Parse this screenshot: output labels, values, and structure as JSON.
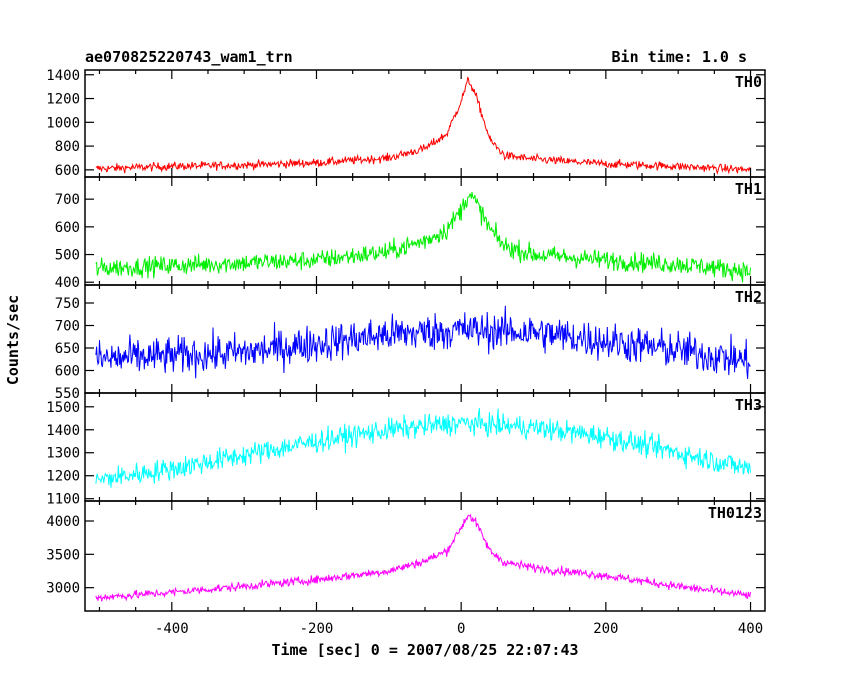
{
  "header": {
    "title": "ae070825220743_wam1_trn",
    "bin_time": "Bin time: 1.0 s"
  },
  "chart_data": {
    "type": "line",
    "xlabel": "Time [sec] 0 = 2007/08/25 22:07:43",
    "ylabel": "Counts/sec",
    "xlim": [
      -520,
      420
    ],
    "x_ticks": [
      -400,
      -200,
      0,
      200,
      400
    ],
    "data_x_range": [
      -505,
      400
    ],
    "grid": false,
    "panels": [
      {
        "name": "TH0",
        "color": "#ff0000",
        "ylim": [
          540,
          1440
        ],
        "y_ticks": [
          600,
          800,
          1000,
          1200,
          1400
        ],
        "trend": {
          "x": [
            -505,
            -400,
            -300,
            -200,
            -100,
            -50,
            -20,
            0,
            10,
            20,
            40,
            60,
            100,
            200,
            300,
            400
          ],
          "y": [
            610,
            630,
            640,
            660,
            700,
            780,
            900,
            1180,
            1360,
            1230,
            850,
            720,
            690,
            650,
            630,
            600
          ]
        },
        "noise": 25
      },
      {
        "name": "TH1",
        "color": "#00ee00",
        "ylim": [
          390,
          780
        ],
        "y_ticks": [
          400,
          500,
          600,
          700
        ],
        "trend": {
          "x": [
            -505,
            -300,
            -200,
            -100,
            -50,
            -20,
            0,
            10,
            20,
            40,
            60,
            100,
            200,
            300,
            400
          ],
          "y": [
            450,
            470,
            480,
            510,
            550,
            590,
            660,
            720,
            690,
            590,
            530,
            500,
            480,
            465,
            440
          ]
        },
        "noise": 25
      },
      {
        "name": "TH2",
        "color": "#0000ff",
        "ylim": [
          550,
          790
        ],
        "y_ticks": [
          550,
          600,
          650,
          700,
          750
        ],
        "trend": {
          "x": [
            -505,
            -300,
            -200,
            -100,
            0,
            100,
            200,
            300,
            400
          ],
          "y": [
            625,
            640,
            660,
            680,
            690,
            685,
            665,
            645,
            620
          ]
        },
        "noise": 30
      },
      {
        "name": "TH3",
        "color": "#00ffff",
        "ylim": [
          1090,
          1560
        ],
        "y_ticks": [
          1100,
          1200,
          1300,
          1400,
          1500
        ],
        "trend": {
          "x": [
            -505,
            -400,
            -300,
            -200,
            -100,
            0,
            100,
            200,
            300,
            400
          ],
          "y": [
            1180,
            1230,
            1290,
            1350,
            1400,
            1430,
            1410,
            1370,
            1300,
            1230
          ]
        },
        "noise": 35
      },
      {
        "name": "TH0123",
        "color": "#ff00ff",
        "ylim": [
          2650,
          4300
        ],
        "y_ticks": [
          3000,
          3500,
          4000
        ],
        "trend": {
          "x": [
            -505,
            -400,
            -300,
            -200,
            -100,
            -50,
            -20,
            0,
            10,
            20,
            40,
            60,
            100,
            200,
            300,
            400
          ],
          "y": [
            2850,
            2930,
            3020,
            3120,
            3250,
            3400,
            3550,
            3900,
            4100,
            3980,
            3550,
            3380,
            3300,
            3180,
            3020,
            2880
          ]
        },
        "noise": 45
      }
    ]
  }
}
